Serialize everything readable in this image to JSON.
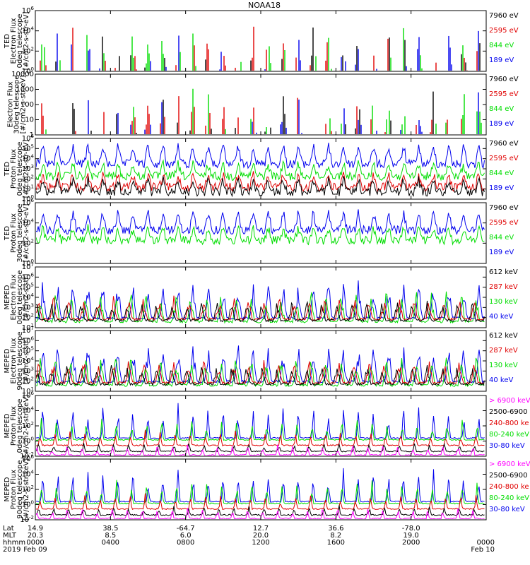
{
  "title": "NOAA18",
  "colors": {
    "black": "#000000",
    "red": "#e00000",
    "green": "#00dd00",
    "blue": "#0000ee",
    "magenta": "#ff00ff"
  },
  "chart_data": [
    {
      "type": "line",
      "ylabel": [
        "TED",
        "Electron Flux",
        "0deg telescope",
        "[#/cm2-s-str-eV]"
      ],
      "ylim": [
        1,
        1000000
      ],
      "yscale": "log",
      "ticks": [
        "10^0",
        "10^2",
        "10^4",
        "10^6"
      ],
      "series": [
        {
          "name": "7960 eV",
          "color": "black"
        },
        {
          "name": "2595 eV",
          "color": "red"
        },
        {
          "name": "844 eV",
          "color": "green"
        },
        {
          "name": "189 eV",
          "color": "blue"
        }
      ]
    },
    {
      "type": "line",
      "ylabel": [
        "Electron Flux",
        "30deg telescope",
        "[#/cm2-s-str-eV]"
      ],
      "ylim": [
        1,
        10000
      ],
      "yscale": "log",
      "ticks": [
        "1",
        "10",
        "100",
        "1000",
        "10000"
      ],
      "series": [
        {
          "name": "7960 eV",
          "color": "black"
        },
        {
          "name": "2595 eV",
          "color": "red"
        },
        {
          "name": "844 eV",
          "color": "green"
        },
        {
          "name": "189 eV",
          "color": "blue"
        }
      ]
    },
    {
      "type": "line",
      "ylabel": [
        "TED",
        "Proton Flux",
        "0deg telescope",
        "[#/cm2-s-str-eV]"
      ],
      "ylim": [
        1,
        1000000
      ],
      "yscale": "log",
      "ticks": [
        "10^0",
        "10^1",
        "10^2",
        "10^3",
        "10^4",
        "10^5",
        "10^6"
      ],
      "series": [
        {
          "name": "7960 eV",
          "color": "black"
        },
        {
          "name": "2595 eV",
          "color": "red"
        },
        {
          "name": "844 eV",
          "color": "green"
        },
        {
          "name": "189 eV",
          "color": "blue"
        }
      ]
    },
    {
      "type": "line",
      "ylabel": [
        "TED",
        "Proton Flux",
        "30deg telescope",
        "[#/cm2-s-str-eV]"
      ],
      "ylim": [
        1,
        1000000
      ],
      "yscale": "log",
      "ticks": [
        "10^0",
        "10^2",
        "10^4",
        "10^6"
      ],
      "series": [
        {
          "name": "7960 eV",
          "color": "black"
        },
        {
          "name": "2595 eV",
          "color": "red"
        },
        {
          "name": "844 eV",
          "color": "green"
        },
        {
          "name": "189 eV",
          "color": "blue"
        }
      ]
    },
    {
      "type": "line",
      "ylabel": [
        "MEPED",
        "Electron Flux",
        "0deg telescope",
        "[#/cm2-s-str]"
      ],
      "ylim": [
        10,
        10000000
      ],
      "yscale": "log",
      "ticks": [
        "10^1",
        "10^2",
        "10^3",
        "10^4",
        "10^5",
        "10^6",
        "10^7"
      ],
      "series": [
        {
          "name": "612 keV",
          "color": "black"
        },
        {
          "name": "287 keV",
          "color": "red"
        },
        {
          "name": "130 keV",
          "color": "green"
        },
        {
          "name": "40 keV",
          "color": "blue"
        }
      ]
    },
    {
      "type": "line",
      "ylabel": [
        "MEPED",
        "Electron Flux",
        "90deg telescope",
        "[#/cm2-s-str]"
      ],
      "ylim": [
        10,
        10000000
      ],
      "yscale": "log",
      "ticks": [
        "10^1",
        "10^2",
        "10^3",
        "10^4",
        "10^5",
        "10^6",
        "10^7"
      ],
      "series": [
        {
          "name": "612 keV",
          "color": "black"
        },
        {
          "name": "287 keV",
          "color": "red"
        },
        {
          "name": "130 keV",
          "color": "green"
        },
        {
          "name": "40 keV",
          "color": "blue"
        }
      ]
    },
    {
      "type": "line",
      "ylabel": [
        "MEPED",
        "Proton Flux",
        "0deg telescope",
        "[#/cm2-s-str-keV]"
      ],
      "ylim": [
        0.01,
        1000000
      ],
      "yscale": "log",
      "ticks": [
        "10^-2",
        "10^0",
        "10^2",
        "10^4",
        "10^6"
      ],
      "series": [
        {
          "name": "> 6900 keV",
          "color": "magenta"
        },
        {
          "name": "2500-6900",
          "color": "black"
        },
        {
          "name": "240-800 ke",
          "color": "red"
        },
        {
          "name": "80-240 keV",
          "color": "green"
        },
        {
          "name": "30-80 keV",
          "color": "blue"
        }
      ]
    },
    {
      "type": "line",
      "ylabel": [
        "MEPED",
        "Proton Flux",
        "90deg telescope",
        "[#/cm2-s-str-keV]"
      ],
      "ylim": [
        0.01,
        1000000
      ],
      "yscale": "log",
      "ticks": [
        "10^-2",
        "10^0",
        "10^2",
        "10^4",
        "10^6"
      ],
      "series": [
        {
          "name": "> 6900 keV",
          "color": "magenta"
        },
        {
          "name": "2500-6900",
          "color": "black"
        },
        {
          "name": "240-800 ke",
          "color": "red"
        },
        {
          "name": "80-240 keV",
          "color": "green"
        },
        {
          "name": "30-80 keV",
          "color": "blue"
        }
      ]
    }
  ],
  "xaxis": {
    "row_labels": [
      "Lat",
      "MLT",
      "hhmm",
      "2019"
    ],
    "ticks": [
      {
        "hour": 0,
        "lat": "14.9",
        "mlt": "20.3",
        "time": "0000",
        "date": "Feb 09"
      },
      {
        "hour": 4,
        "lat": "38.5",
        "mlt": "8.5",
        "time": "0400",
        "date": ""
      },
      {
        "hour": 8,
        "lat": "-64.7",
        "mlt": "6.0",
        "time": "0800",
        "date": ""
      },
      {
        "hour": 12,
        "lat": "12.7",
        "mlt": "20.0",
        "time": "1200",
        "date": ""
      },
      {
        "hour": 16,
        "lat": "36.6",
        "mlt": "8.2",
        "time": "1600",
        "date": ""
      },
      {
        "hour": 20,
        "lat": "-78.0",
        "mlt": "19.0",
        "time": "2000",
        "date": ""
      },
      {
        "hour": 24,
        "lat": "",
        "mlt": "",
        "time": "0000",
        "date": "Feb 10"
      }
    ]
  }
}
